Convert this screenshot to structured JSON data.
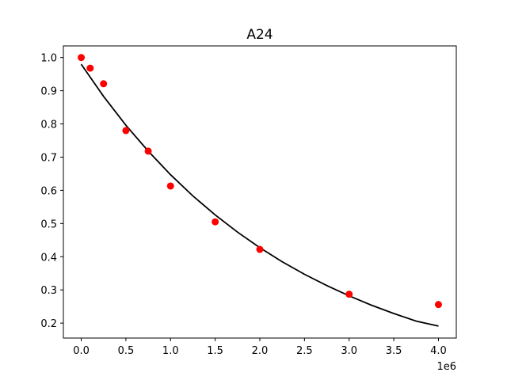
{
  "chart_data": {
    "type": "scatter",
    "title": "A24",
    "xlabel": "",
    "ylabel": "",
    "x_offset_label": "1e6",
    "xlim": [
      -0.2,
      4.2
    ],
    "ylim": [
      0.155,
      1.035
    ],
    "x_ticks": [
      0.0,
      0.5,
      1.0,
      1.5,
      2.0,
      2.5,
      3.0,
      3.5,
      4.0
    ],
    "x_tick_labels": [
      "0.0",
      "0.5",
      "1.0",
      "1.5",
      "2.0",
      "2.5",
      "3.0",
      "3.5",
      "4.0"
    ],
    "y_ticks": [
      0.2,
      0.3,
      0.4,
      0.5,
      0.6,
      0.7,
      0.8,
      0.9,
      1.0
    ],
    "y_tick_labels": [
      "0.2",
      "0.3",
      "0.4",
      "0.5",
      "0.6",
      "0.7",
      "0.8",
      "0.9",
      "1.0"
    ],
    "grid": false,
    "series": [
      {
        "kind": "points",
        "color": "#ff0000",
        "x": [
          0.0,
          0.1,
          0.25,
          0.5,
          0.75,
          1.0,
          1.5,
          2.0,
          3.0,
          4.0
        ],
        "y": [
          1.0,
          0.968,
          0.921,
          0.78,
          0.718,
          0.613,
          0.505,
          0.422,
          0.287,
          0.256
        ]
      },
      {
        "kind": "curve",
        "color": "#000000",
        "x": [
          0.0,
          0.25,
          0.5,
          0.75,
          1.0,
          1.25,
          1.5,
          1.75,
          2.0,
          2.25,
          2.5,
          2.75,
          3.0,
          3.25,
          3.5,
          3.75,
          4.0
        ],
        "y": [
          0.98,
          0.883,
          0.796,
          0.718,
          0.647,
          0.583,
          0.526,
          0.474,
          0.427,
          0.385,
          0.347,
          0.313,
          0.282,
          0.254,
          0.229,
          0.206,
          0.191
        ]
      }
    ]
  }
}
